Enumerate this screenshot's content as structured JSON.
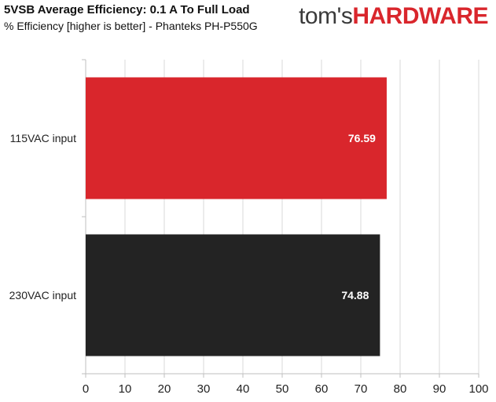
{
  "logo": {
    "part1": "tom's",
    "part2": "HARDWARE"
  },
  "colors": {
    "bar_115": "#d9262c",
    "bar_230": "#232323",
    "grid": "#d9d9d9",
    "axis": "#bfbfbf"
  },
  "chart_data": {
    "type": "bar",
    "orientation": "horizontal",
    "title": "5VSB Average Efficiency: 0.1 A To Full Load",
    "subtitle": "% Efficiency [higher is better] - Phanteks PH-P550G",
    "categories": [
      "115VAC input",
      "230VAC input"
    ],
    "values": [
      76.59,
      74.88
    ],
    "value_labels": [
      "76.59",
      "74.88"
    ],
    "xlim": [
      0,
      100
    ],
    "xticks": [
      0,
      10,
      20,
      30,
      40,
      50,
      60,
      70,
      80,
      90,
      100
    ],
    "grid": true,
    "legend": "none"
  }
}
